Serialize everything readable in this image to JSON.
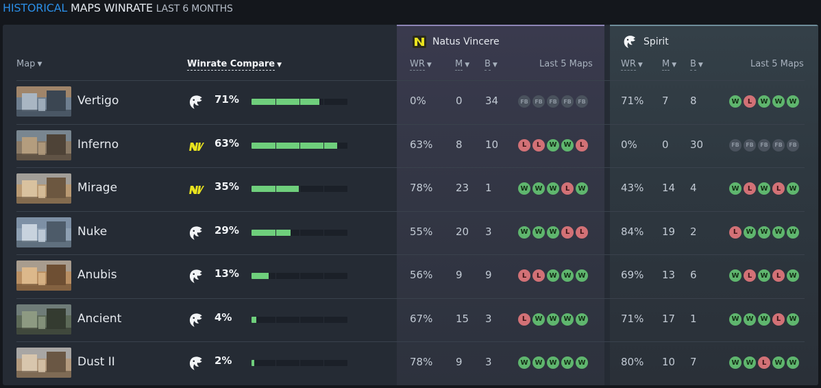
{
  "title": {
    "part1": "HISTORICAL",
    "part2": "MAPS WINRATE",
    "part3": "LAST 6 MONTHS"
  },
  "columns": {
    "map": "Map",
    "winrate_compare": "Winrate Compare",
    "wr": "WR",
    "m": "M",
    "b": "B",
    "last5": "Last 5 Maps"
  },
  "teams": {
    "navi": {
      "name": "Natus Vincere",
      "color": "#e8e21e",
      "logo_icon": "navi-logo-icon"
    },
    "spirit": {
      "name": "Spirit",
      "color": "#ffffff",
      "logo_icon": "spirit-logo-icon"
    }
  },
  "colors": {
    "accent": "#2b8ee6",
    "bar_fill": "#6fcf7c",
    "win": "#5fb66e",
    "loss": "#d27176",
    "forfeit": "#4a525d"
  },
  "rows": [
    {
      "map": "Vertigo",
      "better_team": "spirit",
      "winrate": "71%",
      "bar_fraction": 0.71,
      "navi": {
        "wr": "0%",
        "m": "0",
        "b": "34",
        "last5": [
          "FB",
          "FB",
          "FB",
          "FB",
          "FB"
        ]
      },
      "spirit": {
        "wr": "71%",
        "m": "7",
        "b": "8",
        "last5": [
          "W",
          "L",
          "W",
          "W",
          "W"
        ]
      }
    },
    {
      "map": "Inferno",
      "better_team": "navi",
      "winrate": "63%",
      "bar_fraction": 0.89,
      "navi": {
        "wr": "63%",
        "m": "8",
        "b": "10",
        "last5": [
          "L",
          "L",
          "W",
          "W",
          "L"
        ]
      },
      "spirit": {
        "wr": "0%",
        "m": "0",
        "b": "30",
        "last5": [
          "FB",
          "FB",
          "FB",
          "FB",
          "FB"
        ]
      }
    },
    {
      "map": "Mirage",
      "better_team": "navi",
      "winrate": "35%",
      "bar_fraction": 0.49,
      "navi": {
        "wr": "78%",
        "m": "23",
        "b": "1",
        "last5": [
          "W",
          "W",
          "W",
          "L",
          "W"
        ]
      },
      "spirit": {
        "wr": "43%",
        "m": "14",
        "b": "4",
        "last5": [
          "W",
          "L",
          "W",
          "L",
          "W"
        ]
      }
    },
    {
      "map": "Nuke",
      "better_team": "spirit",
      "winrate": "29%",
      "bar_fraction": 0.41,
      "navi": {
        "wr": "55%",
        "m": "20",
        "b": "3",
        "last5": [
          "W",
          "W",
          "W",
          "L",
          "L"
        ]
      },
      "spirit": {
        "wr": "84%",
        "m": "19",
        "b": "2",
        "last5": [
          "L",
          "W",
          "W",
          "W",
          "W"
        ]
      }
    },
    {
      "map": "Anubis",
      "better_team": "spirit",
      "winrate": "13%",
      "bar_fraction": 0.18,
      "navi": {
        "wr": "56%",
        "m": "9",
        "b": "9",
        "last5": [
          "L",
          "L",
          "W",
          "W",
          "W"
        ]
      },
      "spirit": {
        "wr": "69%",
        "m": "13",
        "b": "6",
        "last5": [
          "W",
          "L",
          "W",
          "L",
          "W"
        ]
      }
    },
    {
      "map": "Ancient",
      "better_team": "spirit",
      "winrate": "4%",
      "bar_fraction": 0.05,
      "navi": {
        "wr": "67%",
        "m": "15",
        "b": "3",
        "last5": [
          "L",
          "W",
          "W",
          "W",
          "W"
        ]
      },
      "spirit": {
        "wr": "71%",
        "m": "17",
        "b": "1",
        "last5": [
          "W",
          "W",
          "W",
          "L",
          "W"
        ]
      }
    },
    {
      "map": "Dust II",
      "better_team": "spirit",
      "winrate": "2%",
      "bar_fraction": 0.03,
      "navi": {
        "wr": "78%",
        "m": "9",
        "b": "3",
        "last5": [
          "W",
          "W",
          "W",
          "W",
          "W"
        ]
      },
      "spirit": {
        "wr": "80%",
        "m": "10",
        "b": "7",
        "last5": [
          "W",
          "W",
          "L",
          "W",
          "W"
        ]
      }
    }
  ]
}
